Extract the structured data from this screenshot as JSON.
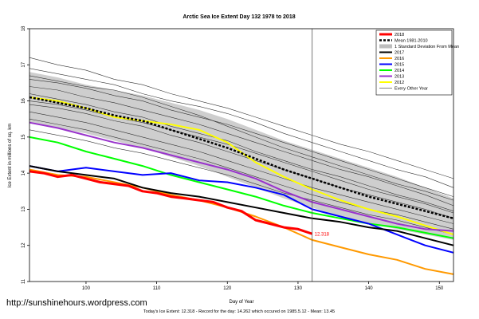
{
  "site_url": "http://sunshinehours.wordpress.com",
  "chart_data": {
    "type": "line",
    "title": "Arctic Sea Ice Extent Day 132 1978 to 2018",
    "xlabel": "Day of Year",
    "ylabel": "Ice Extent in millions of sq. km",
    "xlim": [
      92,
      152
    ],
    "ylim": [
      11,
      18
    ],
    "x_ticks": [
      100,
      110,
      120,
      130,
      140,
      150
    ],
    "y_ticks": [
      11,
      12,
      13,
      14,
      15,
      16,
      17,
      18
    ],
    "current_day": 132,
    "grid": false,
    "legend_position": "top-right",
    "annotation": {
      "text": "12.318",
      "x": 132,
      "y": 12.318
    },
    "footer": "Today's Ice Extent: 12.318  -  Record for the day: 14.262 which occured on 1985.5.12  -  Mean: 13.45",
    "band": {
      "name": "1 Standard Deviation From Mean",
      "color": "#bdbdbd",
      "x": [
        92,
        96,
        100,
        104,
        108,
        112,
        116,
        120,
        124,
        128,
        132,
        136,
        140,
        144,
        148,
        152
      ],
      "upper": [
        16.8,
        16.65,
        16.45,
        16.3,
        16.15,
        15.95,
        15.75,
        15.5,
        15.2,
        14.9,
        14.65,
        14.4,
        14.15,
        13.9,
        13.6,
        13.3
      ],
      "lower": [
        15.4,
        15.25,
        15.1,
        14.9,
        14.7,
        14.45,
        14.2,
        13.9,
        13.6,
        13.3,
        13.05,
        12.8,
        12.6,
        12.45,
        12.3,
        12.15
      ]
    },
    "series": [
      {
        "name": "2018",
        "color": "#ff0000",
        "width": 3,
        "x": [
          92,
          94,
          96,
          98,
          100,
          102,
          104,
          106,
          108,
          110,
          112,
          114,
          116,
          118,
          120,
          122,
          124,
          126,
          128,
          130,
          132
        ],
        "y": [
          14.05,
          14.0,
          13.9,
          13.95,
          13.85,
          13.75,
          13.7,
          13.65,
          13.5,
          13.45,
          13.35,
          13.3,
          13.25,
          13.2,
          13.05,
          12.95,
          12.7,
          12.6,
          12.5,
          12.45,
          12.32
        ]
      },
      {
        "name": "Mean 1981-2010",
        "color": "#000000",
        "width": 2.5,
        "dash": "3,2",
        "x": [
          92,
          96,
          100,
          104,
          108,
          112,
          116,
          120,
          124,
          128,
          132,
          136,
          140,
          144,
          148,
          152
        ],
        "y": [
          16.1,
          15.95,
          15.8,
          15.6,
          15.45,
          15.2,
          14.95,
          14.7,
          14.4,
          14.1,
          13.85,
          13.6,
          13.35,
          13.15,
          12.95,
          12.75
        ]
      },
      {
        "name": "2017",
        "color": "#000000",
        "width": 2,
        "x": [
          92,
          96,
          100,
          104,
          108,
          112,
          116,
          120,
          124,
          128,
          132,
          136,
          140,
          144,
          148,
          152
        ],
        "y": [
          14.2,
          14.05,
          13.95,
          13.85,
          13.6,
          13.45,
          13.35,
          13.2,
          13.05,
          12.9,
          12.75,
          12.65,
          12.5,
          12.4,
          12.2,
          12.0
        ]
      },
      {
        "name": "2016",
        "color": "#ff9900",
        "width": 2,
        "x": [
          92,
          96,
          100,
          104,
          108,
          112,
          116,
          120,
          124,
          128,
          132,
          136,
          140,
          144,
          148,
          152
        ],
        "y": [
          14.1,
          13.95,
          13.9,
          13.75,
          13.6,
          13.4,
          13.25,
          13.05,
          12.8,
          12.5,
          12.15,
          11.95,
          11.75,
          11.6,
          11.35,
          11.2
        ]
      },
      {
        "name": "2015",
        "color": "#0000ff",
        "width": 2,
        "x": [
          92,
          96,
          100,
          104,
          108,
          112,
          116,
          120,
          124,
          128,
          132,
          136,
          140,
          144,
          148,
          152
        ],
        "y": [
          14.2,
          14.05,
          14.15,
          14.05,
          13.95,
          14.0,
          13.8,
          13.75,
          13.6,
          13.4,
          13.0,
          12.8,
          12.6,
          12.3,
          12.0,
          11.8
        ]
      },
      {
        "name": "2014",
        "color": "#00ff00",
        "width": 2,
        "x": [
          92,
          96,
          100,
          104,
          108,
          112,
          116,
          120,
          124,
          128,
          132,
          136,
          140,
          144,
          148,
          152
        ],
        "y": [
          15.0,
          14.85,
          14.6,
          14.4,
          14.2,
          13.95,
          13.75,
          13.55,
          13.35,
          13.1,
          12.9,
          12.75,
          12.6,
          12.5,
          12.35,
          12.2
        ]
      },
      {
        "name": "2013",
        "color": "#9933cc",
        "width": 2,
        "x": [
          92,
          96,
          100,
          104,
          108,
          112,
          116,
          120,
          124,
          128,
          132,
          136,
          140,
          144,
          148,
          152
        ],
        "y": [
          15.4,
          15.25,
          15.05,
          14.85,
          14.7,
          14.5,
          14.3,
          14.1,
          13.85,
          13.5,
          13.2,
          13.0,
          12.8,
          12.6,
          12.45,
          12.4
        ]
      },
      {
        "name": "2012",
        "color": "#ffff00",
        "width": 2,
        "x": [
          92,
          96,
          100,
          104,
          108,
          112,
          116,
          120,
          124,
          128,
          132,
          136,
          140,
          144,
          148,
          152
        ],
        "y": [
          16.1,
          16.0,
          15.8,
          15.55,
          15.45,
          15.35,
          15.2,
          14.85,
          14.3,
          13.9,
          13.55,
          13.25,
          13.0,
          12.8,
          12.55,
          12.3
        ]
      }
    ],
    "other_years": {
      "name": "Every Other Year",
      "color": "#333333",
      "x": [
        92,
        96,
        100,
        104,
        108,
        112,
        116,
        120,
        124,
        128,
        132,
        136,
        140,
        144,
        148,
        152
      ],
      "lines": [
        [
          17.2,
          17.0,
          16.85,
          16.6,
          16.45,
          16.2,
          16.0,
          15.8,
          15.55,
          15.3,
          15.05,
          14.8,
          14.6,
          14.35,
          14.1,
          13.85
        ],
        [
          16.9,
          16.75,
          16.6,
          16.45,
          16.2,
          16.0,
          15.85,
          15.65,
          15.4,
          15.1,
          14.85,
          14.6,
          14.35,
          14.1,
          13.9,
          13.6
        ],
        [
          16.6,
          16.5,
          16.35,
          16.15,
          16.0,
          15.75,
          15.55,
          15.35,
          15.1,
          14.85,
          14.6,
          14.35,
          14.1,
          13.85,
          13.6,
          13.35
        ],
        [
          16.4,
          16.3,
          16.1,
          15.95,
          15.75,
          15.55,
          15.35,
          15.1,
          14.85,
          14.6,
          14.35,
          14.1,
          13.9,
          13.65,
          13.4,
          13.1
        ],
        [
          16.2,
          16.05,
          15.9,
          15.7,
          15.55,
          15.3,
          15.1,
          14.9,
          14.6,
          14.35,
          14.1,
          13.9,
          13.65,
          13.4,
          13.2,
          12.95
        ],
        [
          15.9,
          15.8,
          15.65,
          15.45,
          15.3,
          15.05,
          14.85,
          14.6,
          14.35,
          14.1,
          13.85,
          13.6,
          13.4,
          13.2,
          13.0,
          12.75
        ],
        [
          15.7,
          15.55,
          15.4,
          15.2,
          15.0,
          14.8,
          14.6,
          14.35,
          14.1,
          13.85,
          13.6,
          13.4,
          13.2,
          13.0,
          12.8,
          12.6
        ],
        [
          15.5,
          15.35,
          15.2,
          15.0,
          14.8,
          14.6,
          14.4,
          14.15,
          13.9,
          13.65,
          13.4,
          13.2,
          13.0,
          12.85,
          12.65,
          12.45
        ],
        [
          15.2,
          15.05,
          14.9,
          14.7,
          14.55,
          14.35,
          14.15,
          13.95,
          13.7,
          13.45,
          13.25,
          13.05,
          12.85,
          12.7,
          12.5,
          12.3
        ],
        [
          16.7,
          16.55,
          16.4,
          16.3,
          16.1,
          15.85,
          15.6,
          15.3,
          15.0,
          14.7,
          14.45,
          14.2,
          13.95,
          13.7,
          13.5,
          13.25
        ],
        [
          16.0,
          15.9,
          15.75,
          15.55,
          15.4,
          15.2,
          15.0,
          14.8,
          14.55,
          14.3,
          14.05,
          13.8,
          13.55,
          13.35,
          13.15,
          12.9
        ]
      ]
    }
  }
}
